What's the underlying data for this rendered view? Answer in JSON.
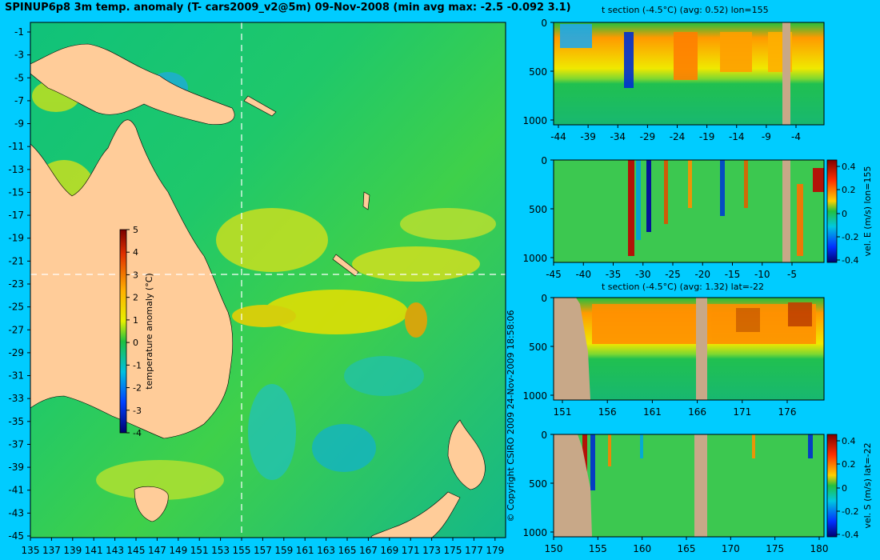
{
  "header": {
    "title": "SPINUP6p8 3m temp. anomaly (T- cars2009_v2@5m) 09-Nov-2008 (min avg max: -2.5 -0.092 3.1)"
  },
  "map": {
    "lon_ticks": [
      "135",
      "137",
      "139",
      "141",
      "143",
      "145",
      "147",
      "149",
      "151",
      "153",
      "155",
      "157",
      "159",
      "161",
      "163",
      "165",
      "167",
      "169",
      "171",
      "173",
      "175",
      "177",
      "179"
    ],
    "lat_ticks": [
      "-1",
      "-3",
      "-5",
      "-7",
      "-9",
      "-11",
      "-13",
      "-15",
      "-17",
      "-19",
      "-21",
      "-23",
      "-25",
      "-27",
      "-29",
      "-31",
      "-33",
      "-35",
      "-37",
      "-39",
      "-41",
      "-43",
      "-45"
    ],
    "section_lon": 155,
    "section_lat": -22,
    "colorbar": {
      "label": "temperature anomaly (°C)",
      "ticks": [
        "5",
        "4",
        "3",
        "2",
        "1",
        "0",
        "-1",
        "-2",
        "-3",
        "-4"
      ]
    },
    "copyright": "© Copyright CSIRO 2009   24-Nov-2009 18:58:06"
  },
  "panels": {
    "p1": {
      "title": "t section (-4.5°C) (avg: 0.52) lon=155",
      "x_ticks": [
        "-44",
        "-39",
        "-34",
        "-29",
        "-24",
        "-19",
        "-14",
        "-9",
        "-4"
      ],
      "y_ticks": [
        "0",
        "500",
        "1000"
      ]
    },
    "p2": {
      "x_ticks": [
        "-45",
        "-40",
        "-35",
        "-30",
        "-25",
        "-20",
        "-15",
        "-10",
        "-5"
      ],
      "y_ticks": [
        "0",
        "500",
        "1000"
      ],
      "cbar_label": "vel. E (m/s) lon=155",
      "cbar_ticks": [
        "0.4",
        "0.2",
        "0",
        "-0.2",
        "-0.4"
      ]
    },
    "p3": {
      "title": "t section (-4.5°C) (avg: 1.32) lat=-22",
      "x_ticks": [
        "151",
        "156",
        "161",
        "166",
        "171",
        "176"
      ],
      "y_ticks": [
        "0",
        "500",
        "1000"
      ]
    },
    "p4": {
      "x_ticks": [
        "150",
        "155",
        "160",
        "165",
        "170",
        "175",
        "180"
      ],
      "y_ticks": [
        "0",
        "500",
        "1000"
      ],
      "cbar_label": "vel. S (m/s) lat=-22",
      "cbar_ticks": [
        "0.4",
        "0.2",
        "0",
        "-0.2",
        "-0.4"
      ]
    }
  }
}
